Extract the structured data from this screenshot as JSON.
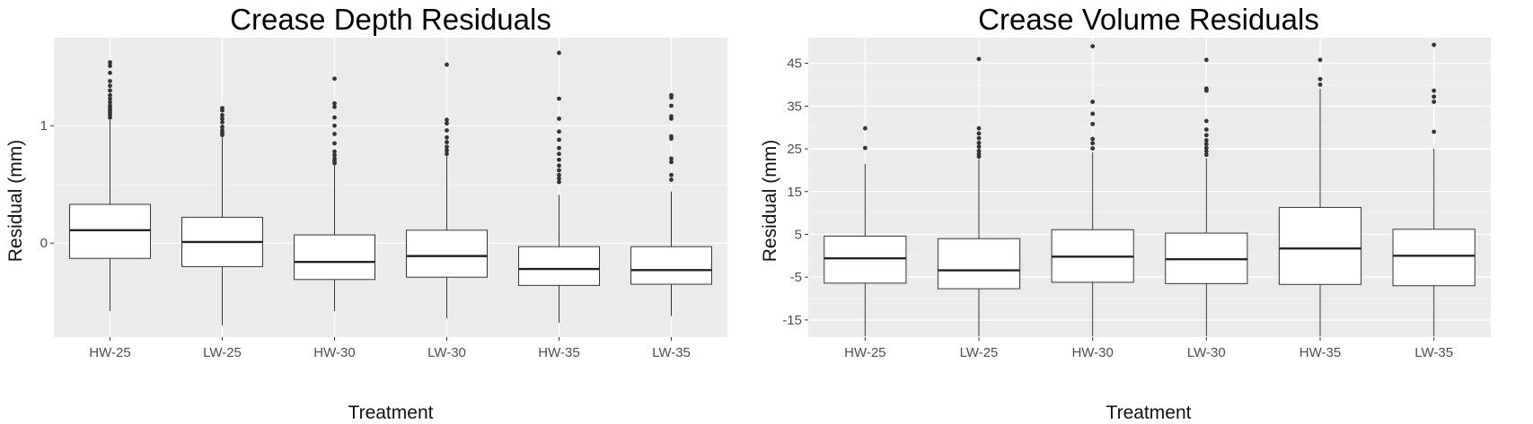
{
  "chart_data": [
    {
      "type": "boxplot",
      "title": "Crease Depth Residuals",
      "xlabel": "Treatment",
      "ylabel": "Residual (mm)",
      "ylim": [
        -0.8,
        1.75
      ],
      "yticks": [
        0,
        1
      ],
      "ytick_labels": [
        "0",
        "1"
      ],
      "grid": true,
      "categories": [
        "HW-25",
        "LW-25",
        "HW-30",
        "LW-30",
        "HW-35",
        "LW-35"
      ],
      "boxes": [
        {
          "min": -0.58,
          "q1": -0.13,
          "median": 0.11,
          "q3": 0.33,
          "max": 1.05,
          "outliers": [
            1.07,
            1.09,
            1.11,
            1.13,
            1.15,
            1.17,
            1.2,
            1.23,
            1.26,
            1.3,
            1.34,
            1.38,
            1.45,
            1.51,
            1.54
          ]
        },
        {
          "min": -0.7,
          "q1": -0.2,
          "median": 0.01,
          "q3": 0.22,
          "max": 0.9,
          "outliers": [
            0.92,
            0.94,
            0.96,
            0.99,
            1.03,
            1.06,
            1.09,
            1.13,
            1.15
          ]
        },
        {
          "min": -0.58,
          "q1": -0.31,
          "median": -0.16,
          "q3": 0.07,
          "max": 0.66,
          "outliers": [
            0.68,
            0.7,
            0.72,
            0.75,
            0.78,
            0.85,
            0.93,
            1.0,
            1.07,
            1.16,
            1.19,
            1.4
          ]
        },
        {
          "min": -0.64,
          "q1": -0.29,
          "median": -0.11,
          "q3": 0.11,
          "max": 0.74,
          "outliers": [
            0.76,
            0.79,
            0.82,
            0.86,
            0.9,
            0.96,
            1.02,
            1.05,
            1.52
          ]
        },
        {
          "min": -0.68,
          "q1": -0.36,
          "median": -0.22,
          "q3": -0.03,
          "max": 0.41,
          "outliers": [
            0.52,
            0.55,
            0.58,
            0.62,
            0.66,
            0.71,
            0.76,
            0.81,
            0.88,
            0.95,
            1.06,
            1.23,
            1.62
          ]
        },
        {
          "min": -0.62,
          "q1": -0.35,
          "median": -0.23,
          "q3": -0.03,
          "max": 0.44,
          "outliers": [
            0.54,
            0.58,
            0.69,
            0.72,
            0.89,
            0.91,
            1.06,
            1.08,
            1.17,
            1.24,
            1.26
          ]
        }
      ]
    },
    {
      "type": "boxplot",
      "title": "Crease Volume Residuals",
      "xlabel": "Treatment",
      "ylabel": "Residual (mm)",
      "ylim": [
        -19,
        51
      ],
      "yticks": [
        -15,
        -5,
        5,
        15,
        25,
        35,
        45
      ],
      "ytick_labels": [
        "-15",
        "-5",
        "5",
        "15",
        "25",
        "35",
        "45"
      ],
      "grid": true,
      "categories": [
        "HW-25",
        "LW-25",
        "HW-30",
        "LW-30",
        "HW-35",
        "LW-35"
      ],
      "boxes": [
        {
          "min": -18.8,
          "q1": -6.4,
          "median": -0.6,
          "q3": 4.6,
          "max": 21.5,
          "outliers": [
            25.2,
            29.8
          ]
        },
        {
          "min": -18.8,
          "q1": -7.7,
          "median": -3.4,
          "q3": 4.0,
          "max": 22.6,
          "outliers": [
            23.2,
            23.8,
            24.5,
            25.5,
            26.4,
            27.5,
            28.6,
            29.8,
            46.0
          ]
        },
        {
          "min": -18.8,
          "q1": -6.2,
          "median": -0.2,
          "q3": 6.1,
          "max": 24.2,
          "outliers": [
            25.1,
            26.3,
            27.3,
            30.8,
            33.2,
            36.0,
            49.0
          ]
        },
        {
          "min": -18.8,
          "q1": -6.5,
          "median": -0.8,
          "q3": 5.3,
          "max": 22.8,
          "outliers": [
            23.6,
            24.4,
            25.2,
            26.1,
            27.0,
            28.2,
            29.5,
            31.5,
            38.6,
            39.1,
            45.8
          ]
        },
        {
          "min": -18.8,
          "q1": -6.7,
          "median": 1.7,
          "q3": 11.3,
          "max": 39.0,
          "outliers": [
            40.0,
            41.3,
            45.8
          ]
        },
        {
          "min": -18.8,
          "q1": -7.0,
          "median": 0.0,
          "q3": 6.2,
          "max": 25.0,
          "outliers": [
            29.0,
            36.0,
            37.2,
            38.6,
            49.3
          ]
        }
      ]
    }
  ]
}
